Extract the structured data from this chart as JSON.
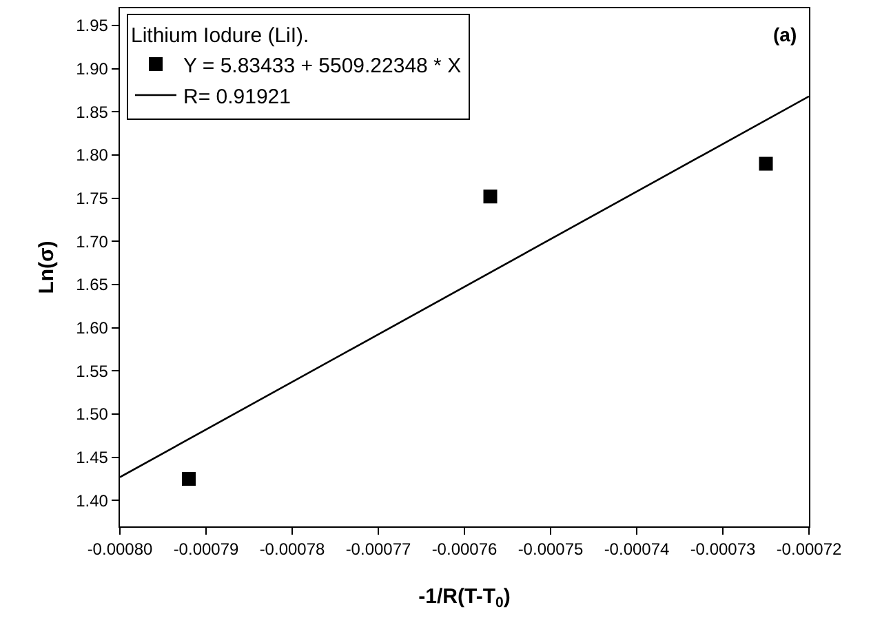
{
  "chart_data": {
    "type": "scatter",
    "xlabel": "-1/R(T-T$_{0}$)",
    "ylabel": "Ln(σ)",
    "legend_title": "Lithium Iodure (LiI).",
    "legend": "top left",
    "annotations": [
      "(a)"
    ],
    "series": [
      {
        "name": "Y = 5.83433 + 5509.22348 * X",
        "marker": "square",
        "color": "#000000",
        "x": [
          -0.000792,
          -0.000757,
          -0.000725
        ],
        "values": [
          1.425,
          1.752,
          1.79
        ]
      },
      {
        "name": "R= 0.91921",
        "type": "line",
        "marker": "none",
        "line_style": "solid",
        "color": "#000000",
        "x": [
          -0.0008,
          -0.00072
        ],
        "values": [
          1.427,
          1.868
        ]
      }
    ],
    "xlim": [
      -0.0008,
      -0.00072
    ],
    "xticks": [
      {
        "value": -0.0008,
        "label": "-0.00080"
      },
      {
        "value": -0.00079,
        "label": "-0.00079"
      },
      {
        "value": -0.00078,
        "label": "-0.00078"
      },
      {
        "value": -0.00077,
        "label": "-0.00077"
      },
      {
        "value": -0.00076,
        "label": "-0.00076"
      },
      {
        "value": -0.00075,
        "label": "-0.00075"
      },
      {
        "value": -0.00074,
        "label": "-0.00074"
      },
      {
        "value": -0.00073,
        "label": "-0.00073"
      },
      {
        "value": -0.00072,
        "label": "-0.00072"
      }
    ],
    "ylim": [
      1.37,
      1.97
    ],
    "yticks": [
      {
        "value": 1.4,
        "label": "1.40"
      },
      {
        "value": 1.45,
        "label": "1.45"
      },
      {
        "value": 1.5,
        "label": "1.50"
      },
      {
        "value": 1.55,
        "label": "1.55"
      },
      {
        "value": 1.6,
        "label": "1.60"
      },
      {
        "value": 1.65,
        "label": "1.65"
      },
      {
        "value": 1.7,
        "label": "1.70"
      },
      {
        "value": 1.75,
        "label": "1.75"
      },
      {
        "value": 1.8,
        "label": "1.80"
      },
      {
        "value": 1.85,
        "label": "1.85"
      },
      {
        "value": 1.9,
        "label": "1.90"
      },
      {
        "value": 1.95,
        "label": "1.95"
      }
    ]
  }
}
